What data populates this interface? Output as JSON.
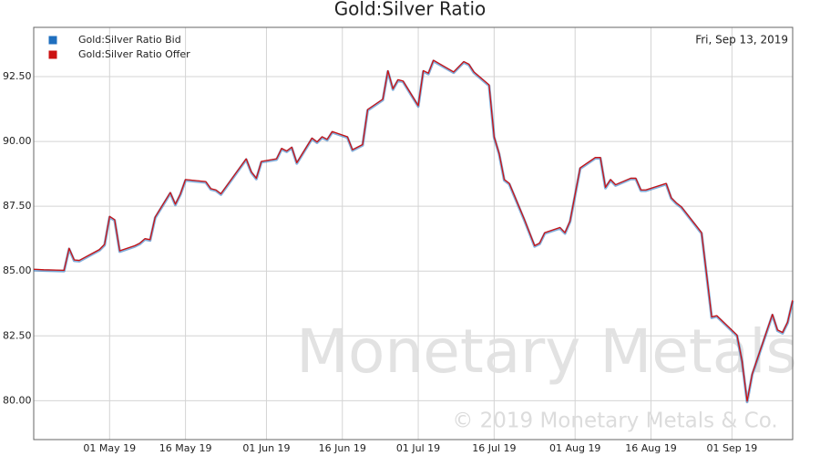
{
  "chart_data": {
    "type": "line",
    "title": "Gold:Silver Ratio",
    "date_label": "Fri, Sep 13, 2019",
    "watermark": "Monetary Metals",
    "copyright": "© 2019 Monetary Metals & Co.",
    "grid": true,
    "legend": "top-left",
    "x": [
      "2019-04-16",
      "2019-04-18",
      "2019-04-22",
      "2019-04-23",
      "2019-04-24",
      "2019-04-25",
      "2019-04-29",
      "2019-04-30",
      "2019-05-01",
      "2019-05-02",
      "2019-05-03",
      "2019-05-06",
      "2019-05-07",
      "2019-05-08",
      "2019-05-09",
      "2019-05-10",
      "2019-05-13",
      "2019-05-14",
      "2019-05-15",
      "2019-05-16",
      "2019-05-20",
      "2019-05-21",
      "2019-05-22",
      "2019-05-23",
      "2019-05-28",
      "2019-05-29",
      "2019-05-30",
      "2019-05-31",
      "2019-06-03",
      "2019-06-04",
      "2019-06-05",
      "2019-06-06",
      "2019-06-07",
      "2019-06-10",
      "2019-06-11",
      "2019-06-12",
      "2019-06-13",
      "2019-06-14",
      "2019-06-17",
      "2019-06-18",
      "2019-06-20",
      "2019-06-21",
      "2019-06-24",
      "2019-06-25",
      "2019-06-26",
      "2019-06-27",
      "2019-06-28",
      "2019-07-01",
      "2019-07-02",
      "2019-07-03",
      "2019-07-04",
      "2019-07-08",
      "2019-07-10",
      "2019-07-11",
      "2019-07-12",
      "2019-07-15",
      "2019-07-16",
      "2019-07-17",
      "2019-07-18",
      "2019-07-19",
      "2019-07-22",
      "2019-07-24",
      "2019-07-25",
      "2019-07-26",
      "2019-07-29",
      "2019-07-30",
      "2019-07-31",
      "2019-08-02",
      "2019-08-05",
      "2019-08-06",
      "2019-08-07",
      "2019-08-08",
      "2019-08-09",
      "2019-08-12",
      "2019-08-13",
      "2019-08-14",
      "2019-08-15",
      "2019-08-19",
      "2019-08-20",
      "2019-08-21",
      "2019-08-22",
      "2019-08-26",
      "2019-08-28",
      "2019-08-29",
      "2019-09-02",
      "2019-09-03",
      "2019-09-04",
      "2019-09-05",
      "2019-09-09",
      "2019-09-10",
      "2019-09-11",
      "2019-09-12",
      "2019-09-13"
    ],
    "series": [
      {
        "name": "Gold:Silver Ratio Bid",
        "color": "#1f6fbf",
        "values": [
          85.04,
          85.02,
          85.0,
          85.85,
          85.4,
          85.38,
          85.8,
          86.0,
          87.08,
          86.95,
          85.75,
          85.95,
          86.05,
          86.22,
          86.18,
          87.05,
          88.0,
          87.55,
          87.95,
          88.5,
          88.42,
          88.15,
          88.1,
          87.95,
          89.3,
          88.8,
          88.55,
          89.2,
          89.3,
          89.7,
          89.6,
          89.75,
          89.15,
          90.1,
          89.95,
          90.15,
          90.05,
          90.35,
          90.15,
          89.65,
          89.85,
          91.2,
          91.6,
          92.7,
          92.0,
          92.35,
          92.3,
          91.35,
          92.7,
          92.6,
          93.1,
          92.65,
          93.05,
          92.95,
          92.65,
          92.15,
          90.15,
          89.5,
          88.5,
          88.35,
          86.95,
          85.95,
          86.05,
          86.45,
          86.65,
          86.45,
          86.9,
          88.95,
          89.35,
          89.35,
          88.2,
          88.5,
          88.3,
          88.55,
          88.55,
          88.1,
          88.1,
          88.35,
          87.8,
          87.6,
          87.45,
          86.45,
          83.2,
          83.25,
          82.5,
          81.5,
          79.95,
          81.0,
          83.3,
          82.7,
          82.6,
          83.0,
          83.85
        ]
      },
      {
        "name": "Gold:Silver Ratio Offer",
        "color": "#cc1111",
        "values": [
          85.07,
          85.05,
          85.03,
          85.88,
          85.43,
          85.41,
          85.83,
          86.03,
          87.11,
          86.98,
          85.78,
          85.98,
          86.08,
          86.25,
          86.21,
          87.08,
          88.03,
          87.58,
          87.98,
          88.53,
          88.45,
          88.18,
          88.13,
          87.98,
          89.33,
          88.83,
          88.58,
          89.23,
          89.33,
          89.73,
          89.63,
          89.78,
          89.18,
          90.13,
          89.98,
          90.18,
          90.08,
          90.38,
          90.18,
          89.68,
          89.88,
          91.23,
          91.63,
          92.73,
          92.03,
          92.38,
          92.33,
          91.38,
          92.73,
          92.63,
          93.13,
          92.68,
          93.08,
          92.98,
          92.68,
          92.18,
          90.18,
          89.53,
          88.53,
          88.38,
          86.98,
          85.98,
          86.08,
          86.48,
          86.68,
          86.48,
          86.93,
          88.98,
          89.38,
          89.38,
          88.23,
          88.53,
          88.33,
          88.58,
          88.58,
          88.13,
          88.13,
          88.38,
          87.83,
          87.63,
          87.48,
          86.48,
          83.23,
          83.28,
          82.53,
          81.53,
          79.98,
          81.03,
          83.33,
          82.73,
          82.63,
          83.03,
          83.88
        ]
      }
    ],
    "xlim": [
      "2019-04-16",
      "2019-09-13"
    ],
    "xticks": [
      {
        "value": "2019-05-01",
        "label": "01 May 19"
      },
      {
        "value": "2019-05-16",
        "label": "16 May 19"
      },
      {
        "value": "2019-06-01",
        "label": "01 Jun 19"
      },
      {
        "value": "2019-06-16",
        "label": "16 Jun 19"
      },
      {
        "value": "2019-07-01",
        "label": "01 Jul 19"
      },
      {
        "value": "2019-07-16",
        "label": "16 Jul 19"
      },
      {
        "value": "2019-08-01",
        "label": "01 Aug 19"
      },
      {
        "value": "2019-08-16",
        "label": "16 Aug 19"
      },
      {
        "value": "2019-09-01",
        "label": "01 Sep 19"
      }
    ],
    "ylim": [
      78.5,
      94.4
    ],
    "yticks": [
      {
        "value": 80,
        "label": "80.00"
      },
      {
        "value": 82.5,
        "label": "82.50"
      },
      {
        "value": 85,
        "label": "85.00"
      },
      {
        "value": 87.5,
        "label": "87.50"
      },
      {
        "value": 90,
        "label": "90.00"
      },
      {
        "value": 92.5,
        "label": "92.50"
      }
    ]
  }
}
